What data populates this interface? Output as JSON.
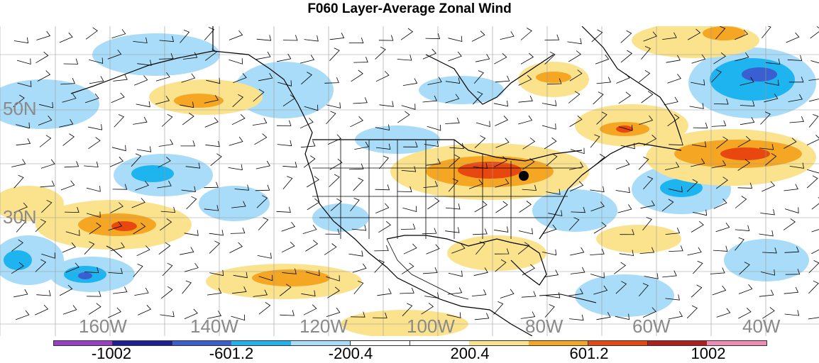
{
  "title": "F060 Layer-Average Zonal Wind",
  "lat_labels": [
    "50N",
    "30N"
  ],
  "lon_labels": [
    "160W",
    "140W",
    "120W",
    "100W",
    "80W",
    "60W",
    "40W"
  ],
  "colorbar": {
    "colors": [
      "#9a3ec8",
      "#1e1e96",
      "#3a5fd0",
      "#1eb4f0",
      "#a8dcf8",
      "#ffffff",
      "#ffffff",
      "#fbe38e",
      "#f5a623",
      "#e8480f",
      "#b01e1e",
      "#f08cb4"
    ],
    "labels": [
      "-1002",
      "-601.2",
      "-200.4",
      "200.4",
      "601.2",
      "1002"
    ]
  },
  "colors": {
    "land_outline": "#000000",
    "grid": "#9a9a9a",
    "station": "#000000"
  }
}
